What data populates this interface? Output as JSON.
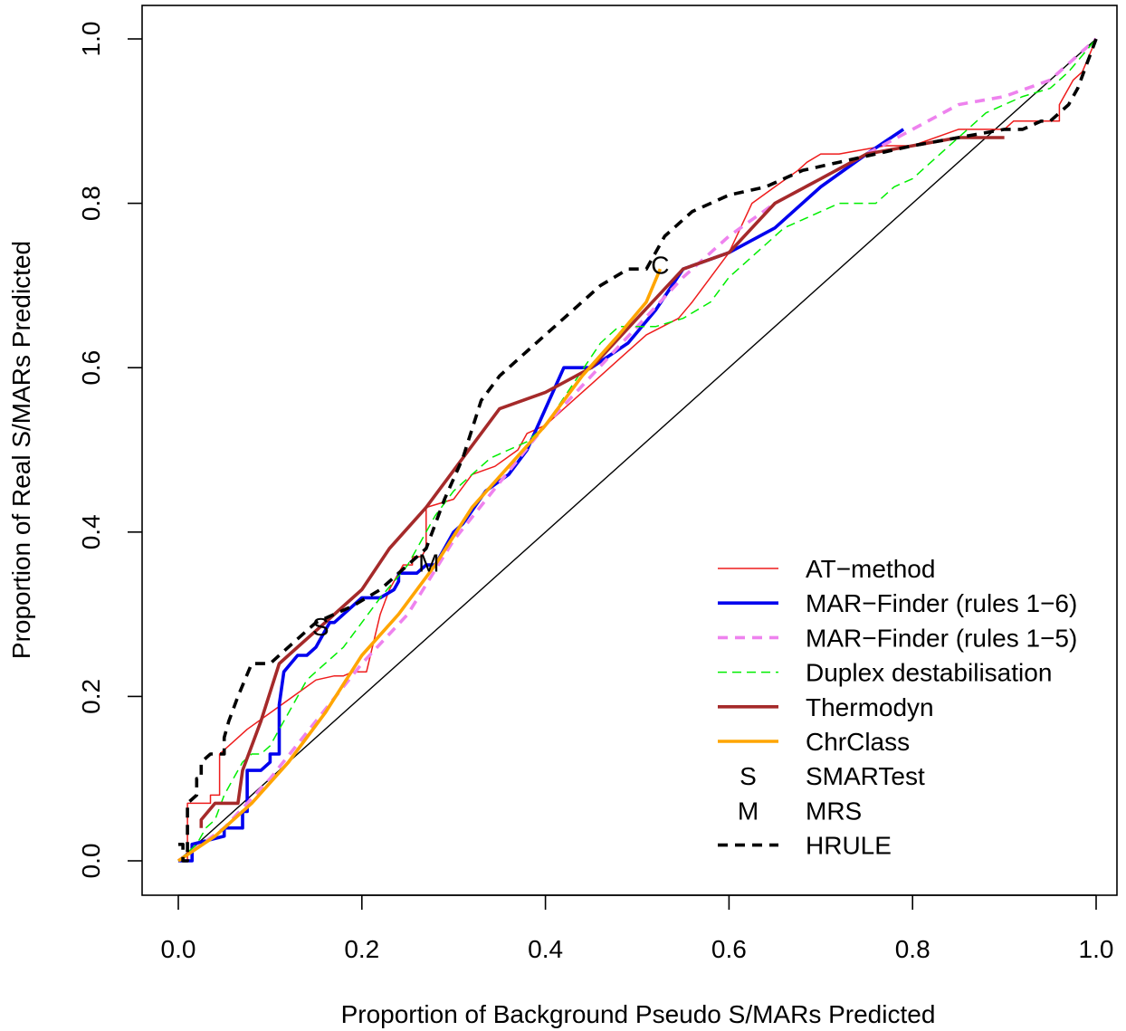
{
  "chart_data": {
    "type": "line",
    "title": "",
    "xlabel": "Proportion of Background Pseudo S/MARs Predicted",
    "ylabel": "Proportion of Real S/MARs Predicted",
    "xlim": [
      0.0,
      1.0
    ],
    "ylim": [
      0.0,
      1.0
    ],
    "xticks": [
      "0.0",
      "0.2",
      "0.4",
      "0.6",
      "0.8",
      "1.0"
    ],
    "yticks": [
      "0.0",
      "0.2",
      "0.4",
      "0.6",
      "0.8",
      "1.0"
    ],
    "grid": false,
    "legend_position": "bottom-right",
    "reference_line": {
      "x": [
        0,
        1
      ],
      "y": [
        0,
        1
      ],
      "color": "#000000"
    },
    "series": [
      {
        "name": "AT−method",
        "color": "#ee1c1c",
        "style": "solid",
        "weight": "thin",
        "x": [
          0.0,
          0.01,
          0.01,
          0.025,
          0.025,
          0.035,
          0.035,
          0.045,
          0.045,
          0.055,
          0.075,
          0.1,
          0.125,
          0.15,
          0.17,
          0.18,
          0.19,
          0.205,
          0.22,
          0.23,
          0.245,
          0.255,
          0.255,
          0.265,
          0.27,
          0.27,
          0.3,
          0.32,
          0.345,
          0.37,
          0.38,
          0.4,
          0.42,
          0.45,
          0.48,
          0.51,
          0.545,
          0.56,
          0.58,
          0.6,
          0.625,
          0.65,
          0.675,
          0.685,
          0.7,
          0.72,
          0.77,
          0.8,
          0.85,
          0.9,
          0.91,
          0.94,
          0.96,
          0.96,
          0.975,
          0.975,
          0.985,
          1.0
        ],
        "y": [
          0.0,
          0.0,
          0.07,
          0.07,
          0.07,
          0.07,
          0.08,
          0.08,
          0.13,
          0.14,
          0.16,
          0.18,
          0.2,
          0.22,
          0.225,
          0.225,
          0.23,
          0.23,
          0.3,
          0.33,
          0.36,
          0.36,
          0.37,
          0.37,
          0.38,
          0.43,
          0.44,
          0.47,
          0.48,
          0.5,
          0.52,
          0.53,
          0.55,
          0.58,
          0.61,
          0.64,
          0.66,
          0.68,
          0.71,
          0.74,
          0.8,
          0.82,
          0.84,
          0.85,
          0.86,
          0.86,
          0.87,
          0.87,
          0.89,
          0.89,
          0.9,
          0.9,
          0.9,
          0.92,
          0.95,
          0.95,
          0.96,
          1.0
        ]
      },
      {
        "name": "MAR−Finder (rules 1−6)",
        "color": "#0000ee",
        "style": "solid",
        "weight": "thick",
        "x": [
          0.0,
          0.015,
          0.015,
          0.05,
          0.05,
          0.07,
          0.07,
          0.075,
          0.075,
          0.09,
          0.09,
          0.1,
          0.1,
          0.11,
          0.11,
          0.115,
          0.13,
          0.13,
          0.14,
          0.15,
          0.16,
          0.165,
          0.17,
          0.18,
          0.2,
          0.22,
          0.235,
          0.24,
          0.24,
          0.26,
          0.27,
          0.28,
          0.3,
          0.31,
          0.335,
          0.36,
          0.38,
          0.4,
          0.42,
          0.45,
          0.49,
          0.52,
          0.55,
          0.6,
          0.65,
          0.7,
          0.75,
          0.79
        ],
        "y": [
          0.0,
          0.0,
          0.02,
          0.03,
          0.04,
          0.04,
          0.06,
          0.06,
          0.11,
          0.11,
          0.11,
          0.12,
          0.13,
          0.13,
          0.19,
          0.23,
          0.25,
          0.25,
          0.25,
          0.26,
          0.28,
          0.29,
          0.29,
          0.3,
          0.32,
          0.32,
          0.33,
          0.34,
          0.35,
          0.35,
          0.36,
          0.36,
          0.4,
          0.41,
          0.45,
          0.47,
          0.5,
          0.55,
          0.6,
          0.6,
          0.63,
          0.67,
          0.72,
          0.74,
          0.77,
          0.82,
          0.86,
          0.89
        ]
      },
      {
        "name": "MAR−Finder (rules 1−5)",
        "color": "#ee82ee",
        "style": "dashed",
        "weight": "thick",
        "x": [
          0.0,
          0.05,
          0.1,
          0.15,
          0.2,
          0.25,
          0.3,
          0.35,
          0.4,
          0.45,
          0.5,
          0.55,
          0.6,
          0.65,
          0.7,
          0.75,
          0.8,
          0.85,
          0.9,
          0.95,
          1.0
        ],
        "y": [
          0.0,
          0.04,
          0.1,
          0.17,
          0.24,
          0.3,
          0.39,
          0.46,
          0.53,
          0.59,
          0.65,
          0.71,
          0.76,
          0.8,
          0.83,
          0.86,
          0.89,
          0.92,
          0.93,
          0.95,
          1.0
        ]
      },
      {
        "name": "Duplex destabilisation",
        "color": "#00ee00",
        "style": "dashed",
        "weight": "thin",
        "x": [
          0.0,
          0.02,
          0.03,
          0.04,
          0.05,
          0.06,
          0.07,
          0.08,
          0.09,
          0.1,
          0.12,
          0.14,
          0.16,
          0.18,
          0.2,
          0.22,
          0.25,
          0.28,
          0.3,
          0.32,
          0.34,
          0.36,
          0.38,
          0.4,
          0.43,
          0.46,
          0.48,
          0.5,
          0.52,
          0.55,
          0.58,
          0.6,
          0.62,
          0.64,
          0.66,
          0.68,
          0.7,
          0.72,
          0.74,
          0.76,
          0.78,
          0.8,
          0.82,
          0.84,
          0.86,
          0.88,
          0.9,
          0.92,
          0.95,
          0.97,
          1.0
        ],
        "y": [
          0.0,
          0.02,
          0.04,
          0.05,
          0.08,
          0.1,
          0.12,
          0.13,
          0.13,
          0.14,
          0.18,
          0.22,
          0.24,
          0.26,
          0.29,
          0.32,
          0.36,
          0.42,
          0.45,
          0.47,
          0.49,
          0.5,
          0.51,
          0.53,
          0.58,
          0.63,
          0.65,
          0.65,
          0.65,
          0.66,
          0.68,
          0.71,
          0.73,
          0.75,
          0.77,
          0.78,
          0.79,
          0.8,
          0.8,
          0.8,
          0.82,
          0.83,
          0.85,
          0.87,
          0.89,
          0.91,
          0.92,
          0.93,
          0.94,
          0.96,
          1.0
        ]
      },
      {
        "name": "Thermodyn",
        "color": "#a52a2a",
        "style": "solid",
        "weight": "thick",
        "x": [
          0.025,
          0.025,
          0.04,
          0.065,
          0.07,
          0.09,
          0.11,
          0.13,
          0.15,
          0.17,
          0.2,
          0.23,
          0.27,
          0.31,
          0.35,
          0.4,
          0.45,
          0.5,
          0.55,
          0.6,
          0.65,
          0.7,
          0.75,
          0.8,
          0.85,
          0.9
        ],
        "y": [
          0.04,
          0.05,
          0.07,
          0.07,
          0.11,
          0.17,
          0.24,
          0.26,
          0.28,
          0.3,
          0.33,
          0.38,
          0.43,
          0.49,
          0.55,
          0.57,
          0.6,
          0.66,
          0.72,
          0.74,
          0.8,
          0.83,
          0.86,
          0.87,
          0.88,
          0.88
        ]
      },
      {
        "name": "ChrClass",
        "color": "#ffa500",
        "style": "solid",
        "weight": "thick",
        "x": [
          0.0,
          0.04,
          0.08,
          0.12,
          0.16,
          0.2,
          0.24,
          0.28,
          0.32,
          0.36,
          0.4,
          0.44,
          0.48,
          0.51,
          0.525
        ],
        "y": [
          0.0,
          0.03,
          0.07,
          0.12,
          0.18,
          0.25,
          0.3,
          0.36,
          0.43,
          0.48,
          0.53,
          0.59,
          0.64,
          0.68,
          0.72
        ]
      },
      {
        "name": "HRULE",
        "color": "#000000",
        "style": "dashed",
        "weight": "thick",
        "x": [
          0.0,
          0.005,
          0.005,
          0.01,
          0.01,
          0.02,
          0.02,
          0.025,
          0.025,
          0.035,
          0.035,
          0.05,
          0.05,
          0.055,
          0.065,
          0.08,
          0.08,
          0.1,
          0.11,
          0.13,
          0.15,
          0.17,
          0.19,
          0.22,
          0.24,
          0.27,
          0.29,
          0.31,
          0.33,
          0.35,
          0.38,
          0.42,
          0.46,
          0.49,
          0.51,
          0.53,
          0.56,
          0.6,
          0.64,
          0.68,
          0.72,
          0.76,
          0.8,
          0.85,
          0.9,
          0.92,
          0.94,
          0.95,
          0.97,
          0.98,
          1.0
        ],
        "y": [
          0.02,
          0.02,
          0.0,
          0.0,
          0.07,
          0.08,
          0.1,
          0.1,
          0.12,
          0.13,
          0.13,
          0.13,
          0.15,
          0.17,
          0.2,
          0.24,
          0.24,
          0.24,
          0.25,
          0.27,
          0.29,
          0.3,
          0.31,
          0.33,
          0.35,
          0.38,
          0.44,
          0.49,
          0.56,
          0.59,
          0.62,
          0.66,
          0.7,
          0.72,
          0.72,
          0.76,
          0.79,
          0.81,
          0.82,
          0.84,
          0.85,
          0.86,
          0.87,
          0.88,
          0.89,
          0.89,
          0.9,
          0.9,
          0.92,
          0.94,
          1.0
        ]
      }
    ],
    "point_markers": [
      {
        "name": "SMARTest",
        "symbol": "S",
        "x": 0.155,
        "y": 0.285
      },
      {
        "name": "MRS",
        "symbol": "M",
        "x": 0.273,
        "y": 0.363
      },
      {
        "name": "",
        "symbol": "C",
        "x": 0.525,
        "y": 0.725
      }
    ],
    "legend": [
      {
        "label": "AT−method",
        "kind": "line",
        "color": "#ee1c1c",
        "style": "solid",
        "weight": "thin"
      },
      {
        "label": "MAR−Finder (rules 1−6)",
        "kind": "line",
        "color": "#0000ee",
        "style": "solid",
        "weight": "thick"
      },
      {
        "label": "MAR−Finder (rules 1−5)",
        "kind": "line",
        "color": "#ee82ee",
        "style": "dashed",
        "weight": "thick"
      },
      {
        "label": "Duplex destabilisation",
        "kind": "line",
        "color": "#00ee00",
        "style": "dashed",
        "weight": "thin"
      },
      {
        "label": "Thermodyn",
        "kind": "line",
        "color": "#a52a2a",
        "style": "solid",
        "weight": "thick"
      },
      {
        "label": "ChrClass",
        "kind": "line",
        "color": "#ffa500",
        "style": "solid",
        "weight": "thick"
      },
      {
        "label": "SMARTest",
        "kind": "symbol",
        "symbol": "S"
      },
      {
        "label": "MRS",
        "kind": "symbol",
        "symbol": "M"
      },
      {
        "label": "HRULE",
        "kind": "line",
        "color": "#000000",
        "style": "dashed",
        "weight": "thick"
      }
    ]
  }
}
